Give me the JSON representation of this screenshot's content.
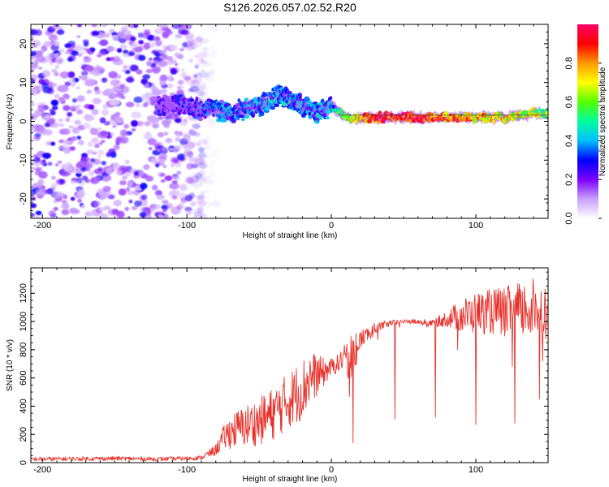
{
  "title": "S126.2026.057.02.52.R20",
  "chart_data": [
    {
      "type": "heatmap",
      "xlabel": "Height of straight line (km)",
      "ylabel": "Frequency (Hz)",
      "xlim": [
        -208,
        150
      ],
      "ylim": [
        -25,
        25
      ],
      "xticks": [
        -200,
        -100,
        0,
        100
      ],
      "yticks": [
        -20,
        -10,
        0,
        10,
        20
      ],
      "colorbar": {
        "label": "Normalized spectral amplitude",
        "range": [
          0,
          1
        ],
        "ticks": [
          "0.0",
          "0.2",
          "0.4",
          "0.6",
          "0.8"
        ],
        "colors": [
          "#ffffff",
          "#c8a0ff",
          "#7b00ff",
          "#0000ff",
          "#00bfff",
          "#00ff9f",
          "#55ff00",
          "#ffff00",
          "#ff9900",
          "#ff0000",
          "#ff0066"
        ]
      },
      "ridge": {
        "x": [
          -120,
          -110,
          -100,
          -90,
          -80,
          -70,
          -60,
          -50,
          -40,
          -35,
          -30,
          -20,
          -10,
          0,
          10,
          20,
          40,
          60,
          80,
          100,
          120,
          140,
          150
        ],
        "freq": [
          4,
          4,
          4,
          3,
          3,
          2,
          3,
          4,
          6,
          7,
          6,
          4,
          2,
          4,
          1,
          1,
          1,
          1,
          1,
          1,
          1,
          2,
          2
        ],
        "amplitude": [
          0.15,
          0.2,
          0.2,
          0.25,
          0.3,
          0.3,
          0.3,
          0.3,
          0.35,
          0.35,
          0.35,
          0.35,
          0.35,
          0.35,
          0.6,
          0.75,
          0.9,
          0.9,
          0.8,
          0.75,
          0.7,
          0.65,
          0.6
        ]
      },
      "noise_region": {
        "x": [
          -208,
          -95
        ],
        "freq": [
          -25,
          25
        ],
        "amplitude": 0.1
      }
    },
    {
      "type": "line",
      "xlabel": "Height of straight line (km)",
      "ylabel": "SNR (10 * v/v)",
      "xlim": [
        -208,
        150
      ],
      "ylim": [
        0,
        1380
      ],
      "xticks": [
        -200,
        -100,
        0,
        100
      ],
      "yticks": [
        0,
        200,
        400,
        600,
        800,
        1000,
        1200
      ],
      "line_color": "#e8322c",
      "series": [
        {
          "name": "SNR",
          "x": [
            -208,
            -180,
            -150,
            -120,
            -100,
            -90,
            -80,
            -75,
            -70,
            -60,
            -50,
            -40,
            -30,
            -20,
            -15,
            -10,
            -5,
            0,
            5,
            10,
            13,
            15,
            20,
            30,
            40,
            50,
            60,
            70,
            80,
            90,
            100,
            110,
            120,
            130,
            140,
            150
          ],
          "y": [
            25,
            27,
            30,
            25,
            30,
            35,
            90,
            170,
            220,
            260,
            290,
            350,
            440,
            520,
            600,
            620,
            640,
            680,
            700,
            770,
            720,
            780,
            870,
            950,
            990,
            1000,
            1000,
            990,
            1020,
            1040,
            1060,
            1070,
            1070,
            1080,
            1090,
            1090
          ],
          "spread": [
            15,
            15,
            15,
            15,
            15,
            15,
            40,
            80,
            120,
            150,
            170,
            190,
            200,
            220,
            200,
            150,
            100,
            60,
            70,
            80,
            200,
            140,
            70,
            40,
            20,
            15,
            20,
            20,
            60,
            120,
            150,
            160,
            180,
            200,
            220,
            150
          ]
        }
      ],
      "dips": [
        {
          "x": 15,
          "y": 140
        },
        {
          "x": 44,
          "y": 310
        },
        {
          "x": 72,
          "y": 320
        },
        {
          "x": 100,
          "y": 270
        },
        {
          "x": 127,
          "y": 280
        },
        {
          "x": 144,
          "y": 450
        }
      ]
    }
  ]
}
